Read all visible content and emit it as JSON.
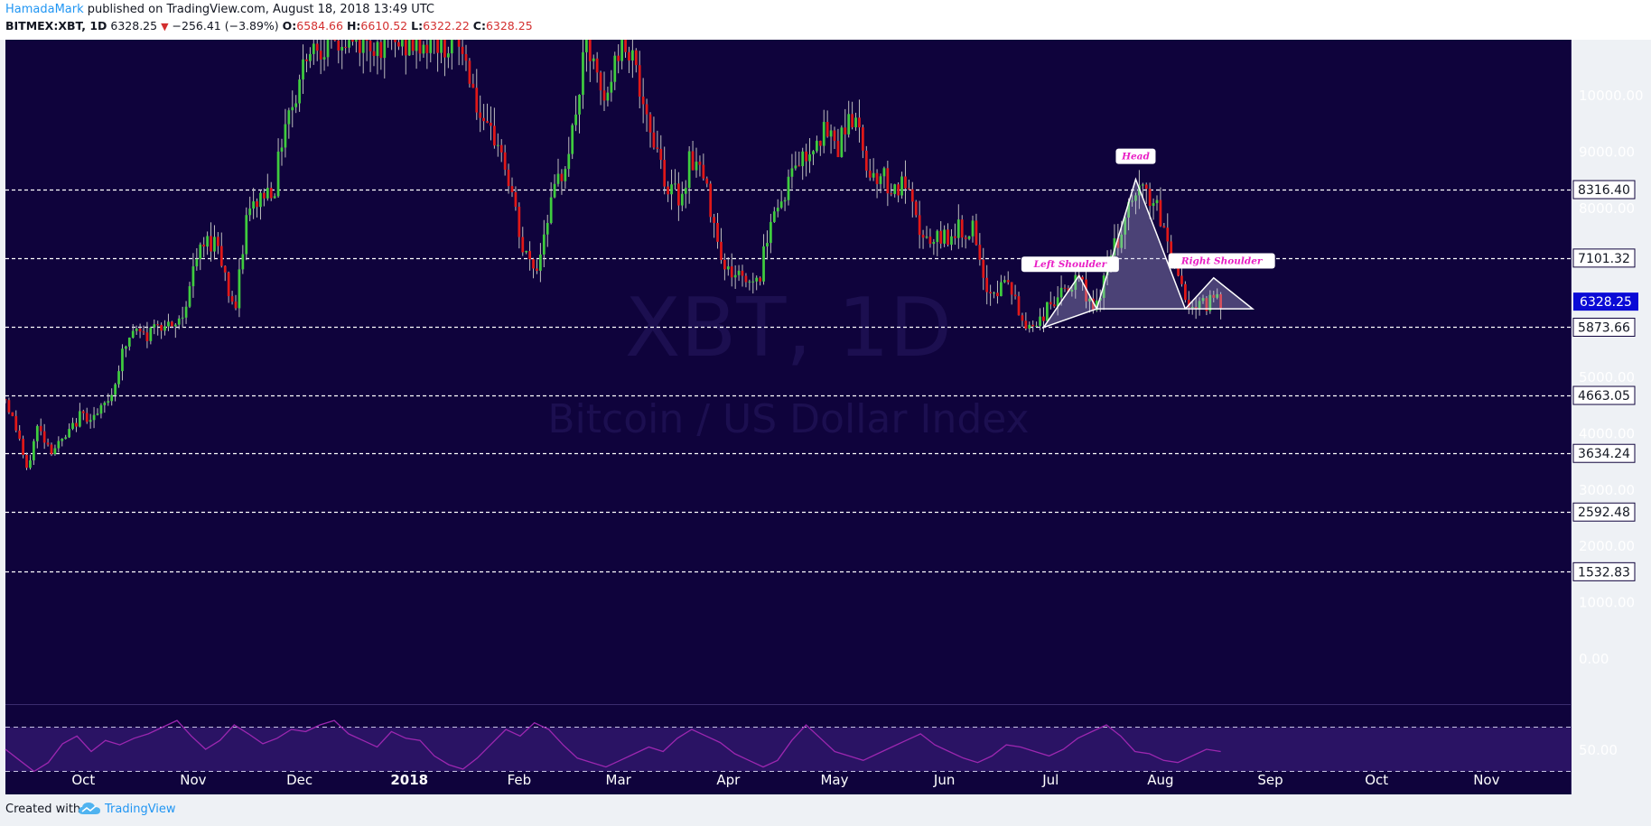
{
  "header": {
    "author": "HamadaMark",
    "published_text": "published on TradingView.com, August 18, 2018 13:49 UTC",
    "symbol": "BITMEX:XBT, 1D",
    "last_price": "6328.25",
    "change": "−256.41 (−3.89%)",
    "open_label": "O:",
    "open": "6584.66",
    "high_label": "H:",
    "high": "6610.52",
    "low_label": "L:",
    "low": "6322.22",
    "close_label": "C:",
    "close": "6328.25"
  },
  "footer": {
    "created_with": "Created with",
    "brand": "TradingView"
  },
  "chart_data": {
    "type": "candlestick",
    "watermark_symbol": "XBT, 1D",
    "watermark_name": "Bitcoin / US Dollar Index",
    "y_axis": {
      "ticks": [
        "10000.00",
        "9000.00",
        "8000.00",
        "5000.00",
        "4000.00",
        "3000.00",
        "2000.00",
        "1000.00",
        "0.00"
      ],
      "tick_values": [
        10000,
        9000,
        8000,
        5000,
        4000,
        3000,
        2000,
        1000,
        0
      ],
      "range": [
        0,
        10900
      ]
    },
    "x_axis": {
      "labels": [
        "Oct",
        "Nov",
        "Dec",
        "2018",
        "Feb",
        "Mar",
        "Apr",
        "May",
        "Jun",
        "Jul",
        "Aug",
        "Sep",
        "Oct",
        "Nov"
      ],
      "bold": [
        "2018"
      ],
      "range": [
        "2017-09-09",
        "2018-11-25"
      ]
    },
    "horizontal_levels": [
      "8316.40",
      "7101.32",
      "5873.66",
      "4663.05",
      "3634.24",
      "2592.48",
      "1532.83"
    ],
    "current_price": "6328.25",
    "pattern": {
      "name": "Head and Shoulders",
      "labels": [
        "Left Shoulder",
        "Head",
        "Right Shoulder"
      ],
      "vertices": [
        {
          "date": "2018-06-29",
          "value": 5870
        },
        {
          "date": "2018-07-09",
          "value": 6790
        },
        {
          "date": "2018-07-14",
          "value": 6200
        },
        {
          "date": "2018-07-25",
          "value": 8500
        },
        {
          "date": "2018-08-08",
          "value": 6200
        },
        {
          "date": "2018-08-16",
          "value": 6750
        },
        {
          "date": "2018-08-27",
          "value": 6200
        }
      ]
    },
    "series": [
      {
        "date": "2017-09-09",
        "value": 4600
      },
      {
        "date": "2017-09-13",
        "value": 3900
      },
      {
        "date": "2017-09-15",
        "value": 3300
      },
      {
        "date": "2017-09-18",
        "value": 4100
      },
      {
        "date": "2017-09-22",
        "value": 3700
      },
      {
        "date": "2017-09-26",
        "value": 3900
      },
      {
        "date": "2017-09-30",
        "value": 4300
      },
      {
        "date": "2017-10-05",
        "value": 4300
      },
      {
        "date": "2017-10-09",
        "value": 4700
      },
      {
        "date": "2017-10-12",
        "value": 5400
      },
      {
        "date": "2017-10-15",
        "value": 5800
      },
      {
        "date": "2017-10-19",
        "value": 5700
      },
      {
        "date": "2017-10-22",
        "value": 6000
      },
      {
        "date": "2017-10-26",
        "value": 5800
      },
      {
        "date": "2017-10-29",
        "value": 6100
      },
      {
        "date": "2017-11-02",
        "value": 7100
      },
      {
        "date": "2017-11-05",
        "value": 7400
      },
      {
        "date": "2017-11-08",
        "value": 7400
      },
      {
        "date": "2017-11-11",
        "value": 6500
      },
      {
        "date": "2017-11-13",
        "value": 6200
      },
      {
        "date": "2017-11-16",
        "value": 7800
      },
      {
        "date": "2017-11-20",
        "value": 8200
      },
      {
        "date": "2017-11-24",
        "value": 8400
      },
      {
        "date": "2017-11-27",
        "value": 9600
      },
      {
        "date": "2017-11-30",
        "value": 10000
      },
      {
        "date": "2017-12-03",
        "value": 10800
      },
      {
        "date": "2017-12-05",
        "value": 10900
      },
      {
        "date": "2018-01-15",
        "value": 10900
      },
      {
        "date": "2018-01-18",
        "value": 10400
      },
      {
        "date": "2018-01-22",
        "value": 9300
      },
      {
        "date": "2018-01-26",
        "value": 9200
      },
      {
        "date": "2018-01-30",
        "value": 8200
      },
      {
        "date": "2018-02-02",
        "value": 7200
      },
      {
        "date": "2018-02-06",
        "value": 6900
      },
      {
        "date": "2018-02-09",
        "value": 7900
      },
      {
        "date": "2018-02-13",
        "value": 8600
      },
      {
        "date": "2018-02-16",
        "value": 9300
      },
      {
        "date": "2018-02-20",
        "value": 10900
      },
      {
        "date": "2018-02-25",
        "value": 9800
      },
      {
        "date": "2018-03-01",
        "value": 10800
      },
      {
        "date": "2018-03-05",
        "value": 10900
      },
      {
        "date": "2018-03-08",
        "value": 9600
      },
      {
        "date": "2018-03-12",
        "value": 9100
      },
      {
        "date": "2018-03-15",
        "value": 8300
      },
      {
        "date": "2018-03-19",
        "value": 8200
      },
      {
        "date": "2018-03-21",
        "value": 8900
      },
      {
        "date": "2018-03-24",
        "value": 8700
      },
      {
        "date": "2018-03-28",
        "value": 7800
      },
      {
        "date": "2018-03-31",
        "value": 6900
      },
      {
        "date": "2018-04-04",
        "value": 6800
      },
      {
        "date": "2018-04-07",
        "value": 6700
      },
      {
        "date": "2018-04-10",
        "value": 6800
      },
      {
        "date": "2018-04-13",
        "value": 7900
      },
      {
        "date": "2018-04-16",
        "value": 8100
      },
      {
        "date": "2018-04-20",
        "value": 8800
      },
      {
        "date": "2018-04-23",
        "value": 8900
      },
      {
        "date": "2018-04-26",
        "value": 9300
      },
      {
        "date": "2018-04-29",
        "value": 9300
      },
      {
        "date": "2018-05-02",
        "value": 9100
      },
      {
        "date": "2018-05-05",
        "value": 9700
      },
      {
        "date": "2018-05-08",
        "value": 9300
      },
      {
        "date": "2018-05-11",
        "value": 8600
      },
      {
        "date": "2018-05-14",
        "value": 8600
      },
      {
        "date": "2018-05-18",
        "value": 8300
      },
      {
        "date": "2018-05-21",
        "value": 8400
      },
      {
        "date": "2018-05-24",
        "value": 7700
      },
      {
        "date": "2018-05-28",
        "value": 7300
      },
      {
        "date": "2018-06-01",
        "value": 7500
      },
      {
        "date": "2018-06-05",
        "value": 7600
      },
      {
        "date": "2018-06-09",
        "value": 7600
      },
      {
        "date": "2018-06-12",
        "value": 6600
      },
      {
        "date": "2018-06-15",
        "value": 6500
      },
      {
        "date": "2018-06-19",
        "value": 6700
      },
      {
        "date": "2018-06-22",
        "value": 6100
      },
      {
        "date": "2018-06-24",
        "value": 5900
      },
      {
        "date": "2018-06-28",
        "value": 6000
      },
      {
        "date": "2018-07-01",
        "value": 6300
      },
      {
        "date": "2018-07-05",
        "value": 6500
      },
      {
        "date": "2018-07-09",
        "value": 6700
      },
      {
        "date": "2018-07-12",
        "value": 6300
      },
      {
        "date": "2018-07-15",
        "value": 6300
      },
      {
        "date": "2018-07-18",
        "value": 7300
      },
      {
        "date": "2018-07-21",
        "value": 7400
      },
      {
        "date": "2018-07-24",
        "value": 8200
      },
      {
        "date": "2018-07-27",
        "value": 8300
      },
      {
        "date": "2018-07-30",
        "value": 8100
      },
      {
        "date": "2018-08-02",
        "value": 7600
      },
      {
        "date": "2018-08-05",
        "value": 7000
      },
      {
        "date": "2018-08-08",
        "value": 6400
      },
      {
        "date": "2018-08-11",
        "value": 6200
      },
      {
        "date": "2018-08-14",
        "value": 6300
      },
      {
        "date": "2018-08-17",
        "value": 6500
      },
      {
        "date": "2018-08-18",
        "value": 6328
      }
    ],
    "indicator": {
      "tick": "50.00",
      "upper_band": 70,
      "lower_band": 30,
      "range": [
        10,
        90
      ],
      "values": [
        50,
        40,
        30,
        38,
        55,
        62,
        48,
        58,
        54,
        60,
        64,
        70,
        76,
        62,
        50,
        58,
        72,
        64,
        55,
        60,
        68,
        66,
        72,
        76,
        64,
        58,
        52,
        66,
        60,
        58,
        44,
        36,
        32,
        42,
        55,
        68,
        62,
        74,
        68,
        54,
        42,
        38,
        34,
        40,
        46,
        52,
        48,
        60,
        68,
        62,
        56,
        46,
        40,
        34,
        40,
        58,
        72,
        60,
        48,
        44,
        40,
        46,
        52,
        58,
        64,
        54,
        48,
        42,
        38,
        44,
        54,
        52,
        48,
        44,
        50,
        60,
        66,
        72,
        62,
        48,
        46,
        40,
        38,
        44,
        50,
        48
      ]
    }
  }
}
